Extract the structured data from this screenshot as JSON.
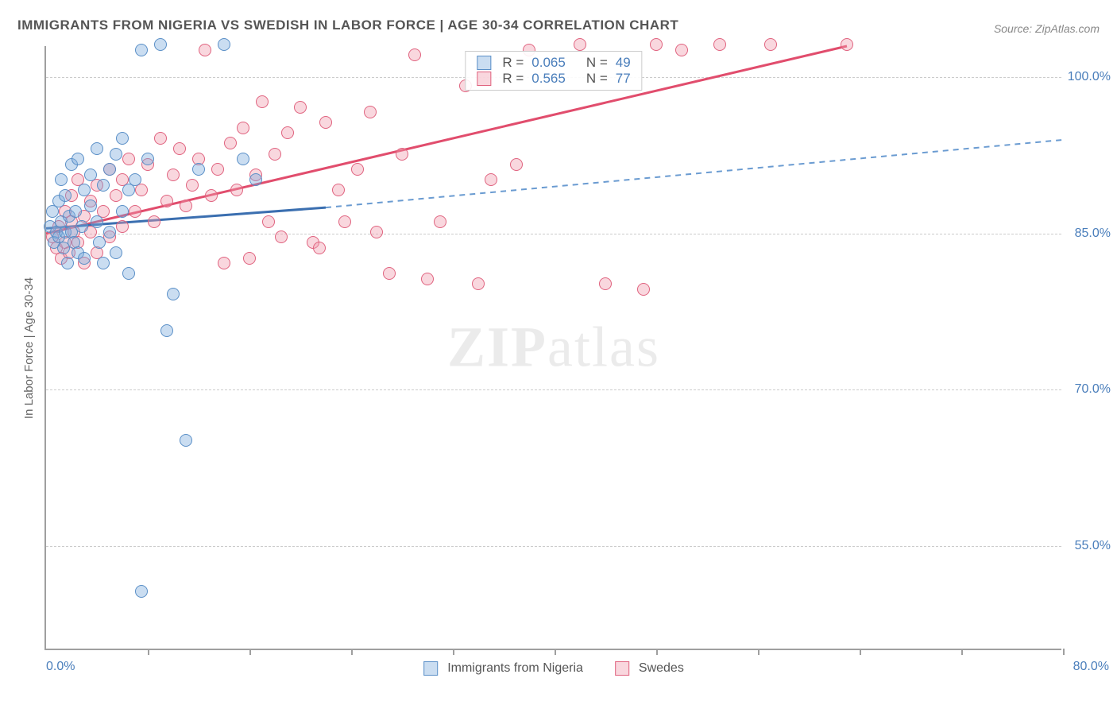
{
  "title": "IMMIGRANTS FROM NIGERIA VS SWEDISH IN LABOR FORCE | AGE 30-34 CORRELATION CHART",
  "source": "Source: ZipAtlas.com",
  "watermark": {
    "zip": "ZIP",
    "atlas": "atlas"
  },
  "y_axis_label": "In Labor Force | Age 30-34",
  "axes": {
    "xlim": [
      0,
      80
    ],
    "ylim": [
      45,
      103
    ],
    "y_ticks": [
      55.0,
      70.0,
      85.0,
      100.0
    ],
    "y_tick_labels": [
      "55.0%",
      "70.0%",
      "85.0%",
      "100.0%"
    ],
    "x_ticks": [
      0,
      8,
      16,
      24,
      32,
      40,
      48,
      56,
      64,
      72,
      80
    ],
    "x_tick_labels": {
      "left": "0.0%",
      "right": "80.0%"
    },
    "grid_color": "#cccccc",
    "axis_color": "#9f9f9f",
    "tick_label_color": "#4a7ebb"
  },
  "series": {
    "nigeria": {
      "label": "Immigrants from Nigeria",
      "fill": "rgba(122,170,219,0.40)",
      "stroke": "#5a8fc7",
      "marker_radius": 8,
      "trend": {
        "x1": 0,
        "y1": 85.5,
        "x2": 22,
        "y2": 87.5,
        "color": "#3b6fb0",
        "width": 3,
        "solid": true
      },
      "trend_ext": {
        "x1": 22,
        "y1": 87.5,
        "x2": 80,
        "y2": 94.0,
        "color": "#6a9bd1",
        "width": 2,
        "solid": false
      },
      "stats": {
        "R_label": "R =",
        "R": "0.065",
        "N_label": "N =",
        "N": "49"
      },
      "points": [
        [
          0.3,
          85.5
        ],
        [
          0.5,
          87.0
        ],
        [
          0.6,
          84.0
        ],
        [
          0.8,
          85.0
        ],
        [
          1.0,
          88.0
        ],
        [
          1.0,
          84.5
        ],
        [
          1.2,
          90.0
        ],
        [
          1.2,
          86.0
        ],
        [
          1.4,
          83.5
        ],
        [
          1.5,
          85.0
        ],
        [
          1.5,
          88.5
        ],
        [
          1.7,
          82.0
        ],
        [
          1.8,
          86.5
        ],
        [
          2.0,
          91.5
        ],
        [
          2.0,
          85.0
        ],
        [
          2.2,
          84.0
        ],
        [
          2.3,
          87.0
        ],
        [
          2.5,
          83.0
        ],
        [
          2.5,
          92.0
        ],
        [
          2.8,
          85.5
        ],
        [
          3.0,
          89.0
        ],
        [
          3.0,
          82.5
        ],
        [
          3.5,
          87.5
        ],
        [
          3.5,
          90.5
        ],
        [
          4.0,
          86.0
        ],
        [
          4.0,
          93.0
        ],
        [
          4.2,
          84.0
        ],
        [
          4.5,
          89.5
        ],
        [
          4.5,
          82.0
        ],
        [
          5.0,
          91.0
        ],
        [
          5.0,
          85.0
        ],
        [
          5.5,
          92.5
        ],
        [
          5.5,
          83.0
        ],
        [
          6.0,
          87.0
        ],
        [
          6.0,
          94.0
        ],
        [
          6.5,
          89.0
        ],
        [
          6.5,
          81.0
        ],
        [
          7.0,
          90.0
        ],
        [
          7.5,
          102.5
        ],
        [
          7.5,
          50.5
        ],
        [
          8.0,
          92.0
        ],
        [
          9.0,
          103.0
        ],
        [
          9.5,
          75.5
        ],
        [
          10.0,
          79.0
        ],
        [
          11.0,
          65.0
        ],
        [
          12.0,
          91.0
        ],
        [
          14.0,
          103.0
        ],
        [
          15.5,
          92.0
        ],
        [
          16.5,
          90.0
        ]
      ]
    },
    "swedes": {
      "label": "Swedes",
      "fill": "rgba(239,154,172,0.40)",
      "stroke": "#e0637f",
      "marker_radius": 8,
      "trend": {
        "x1": 0,
        "y1": 85.0,
        "x2": 63,
        "y2": 103.0,
        "color": "#e14d6d",
        "width": 3,
        "solid": true
      },
      "stats": {
        "R_label": "R =",
        "R": "0.565",
        "N_label": "N =",
        "N": "77"
      },
      "points": [
        [
          0.5,
          84.5
        ],
        [
          0.8,
          83.5
        ],
        [
          1.0,
          85.5
        ],
        [
          1.2,
          82.5
        ],
        [
          1.5,
          84.0
        ],
        [
          1.5,
          87.0
        ],
        [
          1.8,
          83.0
        ],
        [
          2.0,
          86.0
        ],
        [
          2.0,
          88.5
        ],
        [
          2.2,
          85.0
        ],
        [
          2.5,
          84.0
        ],
        [
          2.5,
          90.0
        ],
        [
          3.0,
          86.5
        ],
        [
          3.0,
          82.0
        ],
        [
          3.5,
          88.0
        ],
        [
          3.5,
          85.0
        ],
        [
          4.0,
          83.0
        ],
        [
          4.0,
          89.5
        ],
        [
          4.5,
          87.0
        ],
        [
          5.0,
          91.0
        ],
        [
          5.0,
          84.5
        ],
        [
          5.5,
          88.5
        ],
        [
          6.0,
          90.0
        ],
        [
          6.0,
          85.5
        ],
        [
          6.5,
          92.0
        ],
        [
          7.0,
          87.0
        ],
        [
          7.5,
          89.0
        ],
        [
          8.0,
          91.5
        ],
        [
          8.5,
          86.0
        ],
        [
          9.0,
          94.0
        ],
        [
          9.5,
          88.0
        ],
        [
          10.0,
          90.5
        ],
        [
          10.5,
          93.0
        ],
        [
          11.0,
          87.5
        ],
        [
          11.5,
          89.5
        ],
        [
          12.0,
          92.0
        ],
        [
          12.5,
          102.5
        ],
        [
          13.0,
          88.5
        ],
        [
          13.5,
          91.0
        ],
        [
          14.0,
          82.0
        ],
        [
          14.5,
          93.5
        ],
        [
          15.0,
          89.0
        ],
        [
          15.5,
          95.0
        ],
        [
          16.0,
          82.5
        ],
        [
          16.5,
          90.5
        ],
        [
          17.0,
          97.5
        ],
        [
          17.5,
          86.0
        ],
        [
          18.0,
          92.5
        ],
        [
          18.5,
          84.5
        ],
        [
          19.0,
          94.5
        ],
        [
          20.0,
          97.0
        ],
        [
          21.0,
          84.0
        ],
        [
          21.5,
          83.5
        ],
        [
          22.0,
          95.5
        ],
        [
          23.0,
          89.0
        ],
        [
          23.5,
          86.0
        ],
        [
          24.5,
          91.0
        ],
        [
          25.5,
          96.5
        ],
        [
          26.0,
          85.0
        ],
        [
          27.0,
          81.0
        ],
        [
          28.0,
          92.5
        ],
        [
          29.0,
          102.0
        ],
        [
          30.0,
          80.5
        ],
        [
          31.0,
          86.0
        ],
        [
          33.0,
          99.0
        ],
        [
          34.0,
          80.0
        ],
        [
          35.0,
          90.0
        ],
        [
          37.0,
          91.5
        ],
        [
          38.0,
          102.5
        ],
        [
          42.0,
          103.0
        ],
        [
          44.0,
          80.0
        ],
        [
          47.0,
          79.5
        ],
        [
          48.0,
          103.0
        ],
        [
          50.0,
          102.5
        ],
        [
          53.0,
          103.0
        ],
        [
          57.0,
          103.0
        ],
        [
          63.0,
          103.0
        ]
      ]
    }
  },
  "colors": {
    "background": "#ffffff",
    "title": "#555555",
    "source": "#888888",
    "watermark": "rgba(120,120,120,0.15)"
  }
}
